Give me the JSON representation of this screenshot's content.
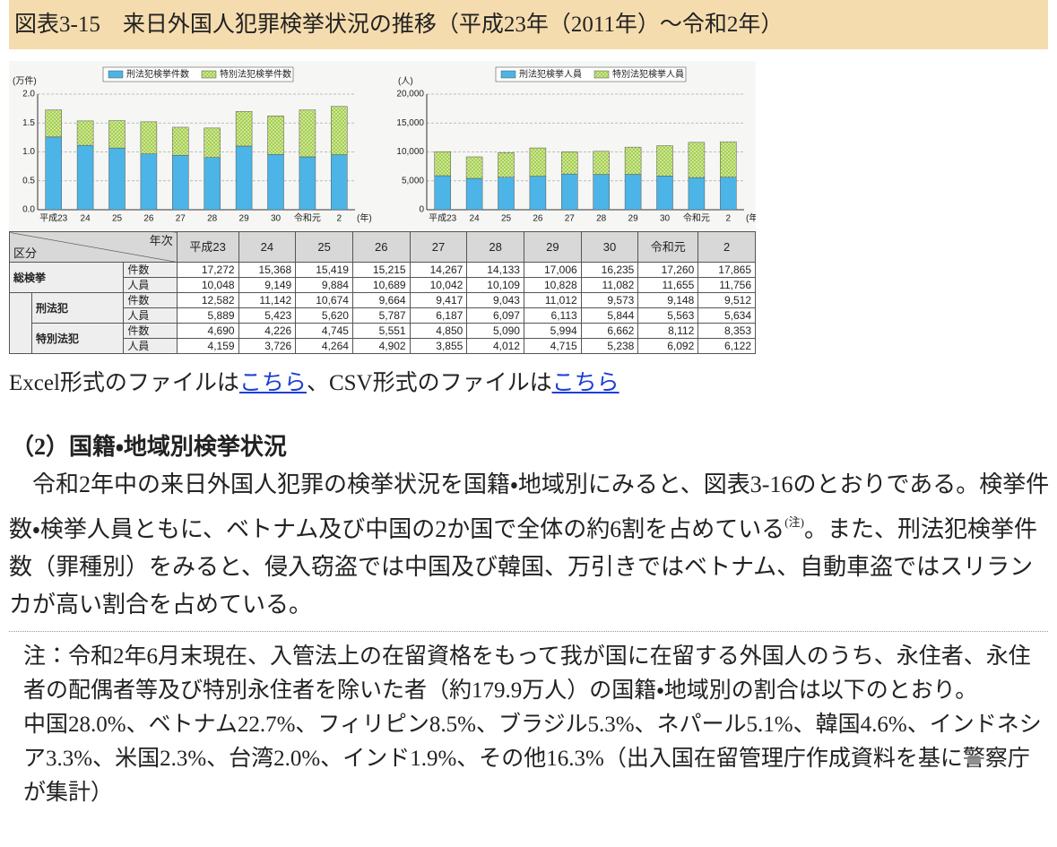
{
  "header": {
    "title": "図表3-15　来日外国人犯罪検挙状況の推移（平成23年（2011年）～令和2年）"
  },
  "chart_data": [
    {
      "type": "stacked-bar",
      "ylabel": "(万件)",
      "xlabel": "(年)",
      "categories": [
        "平成23",
        "24",
        "25",
        "26",
        "27",
        "28",
        "29",
        "30",
        "令和元",
        "2"
      ],
      "series": [
        {
          "name": "刑法犯検挙件数",
          "color": "#4cb4e6",
          "values": [
            1.2582,
            1.1142,
            1.0674,
            0.9664,
            0.9417,
            0.9043,
            1.1012,
            0.9573,
            0.9148,
            0.9512
          ]
        },
        {
          "name": "特別法犯検挙件数",
          "color": "#a5cf4c",
          "hatch": "dots",
          "values": [
            0.469,
            0.4226,
            0.4745,
            0.5551,
            0.485,
            0.509,
            0.5994,
            0.6662,
            0.8112,
            0.8353
          ]
        }
      ],
      "ylim": [
        0,
        2
      ],
      "yticks": [
        {
          "value": 0,
          "label": "0.0"
        },
        0.5,
        {
          "value": 1,
          "label": "1.0"
        },
        1.5,
        {
          "value": 2,
          "label": "2.0"
        }
      ],
      "grid": true
    },
    {
      "type": "stacked-bar",
      "ylabel": "(人)",
      "xlabel": "(年)",
      "categories": [
        "平成23",
        "24",
        "25",
        "26",
        "27",
        "28",
        "29",
        "30",
        "令和元",
        "2"
      ],
      "series": [
        {
          "name": "刑法犯検挙人員",
          "color": "#4cb4e6",
          "values": [
            5889,
            5423,
            5620,
            5787,
            6187,
            6097,
            6113,
            5844,
            5563,
            5634
          ]
        },
        {
          "name": "特別法犯検挙人員",
          "color": "#a5cf4c",
          "hatch": "dots",
          "values": [
            4159,
            3726,
            4264,
            4902,
            3855,
            4012,
            4715,
            5238,
            6092,
            6122
          ]
        }
      ],
      "ylim": [
        0,
        20000
      ],
      "yticks": [
        0,
        {
          "value": 5000,
          "label": "5,000"
        },
        {
          "value": 10000,
          "label": "10,000"
        },
        {
          "value": 15000,
          "label": "15,000"
        },
        {
          "value": 20000,
          "label": "20,000"
        }
      ],
      "grid": true
    }
  ],
  "table": {
    "corner_top": "年次",
    "corner_bottom": "区分",
    "columns": [
      "平成23",
      "24",
      "25",
      "26",
      "27",
      "28",
      "29",
      "30",
      "令和元",
      "2"
    ],
    "sections": [
      {
        "label": "総検挙",
        "rows": [
          {
            "label": "件数",
            "cells": [
              "17,272",
              "15,368",
              "15,419",
              "15,215",
              "14,267",
              "14,133",
              "17,006",
              "16,235",
              "17,260",
              "17,865"
            ]
          },
          {
            "label": "人員",
            "cells": [
              "10,048",
              "9,149",
              "9,884",
              "10,689",
              "10,042",
              "10,109",
              "10,828",
              "11,082",
              "11,655",
              "11,756"
            ]
          }
        ]
      },
      {
        "label": "刑法犯",
        "rows": [
          {
            "label": "件数",
            "cells": [
              "12,582",
              "11,142",
              "10,674",
              "9,664",
              "9,417",
              "9,043",
              "11,012",
              "9,573",
              "9,148",
              "9,512"
            ]
          },
          {
            "label": "人員",
            "cells": [
              "5,889",
              "5,423",
              "5,620",
              "5,787",
              "6,187",
              "6,097",
              "6,113",
              "5,844",
              "5,563",
              "5,634"
            ]
          }
        ]
      },
      {
        "label": "特別法犯",
        "rows": [
          {
            "label": "件数",
            "cells": [
              "4,690",
              "4,226",
              "4,745",
              "5,551",
              "4,850",
              "5,090",
              "5,994",
              "6,662",
              "8,112",
              "8,353"
            ]
          },
          {
            "label": "人員",
            "cells": [
              "4,159",
              "3,726",
              "4,264",
              "4,902",
              "3,855",
              "4,012",
              "4,715",
              "5,238",
              "6,092",
              "6,122"
            ]
          }
        ]
      }
    ]
  },
  "downloads": {
    "excel_text": "Excel形式のファイルは",
    "excel_link": "こちら",
    "csv_text": "、CSV形式のファイルは",
    "csv_link": "こちら"
  },
  "section": {
    "heading": "（2）国籍・地域別検挙状況",
    "before": "　令和2年中の来日外国人犯罪の検挙状況を国籍・地域別にみると、図表3-16のとおりである。検挙件数・検挙人員ともに、ベトナム及び中国の2か国で全体の約6割を占めている",
    "note_ref": "(注)",
    "after": "。また、刑法犯検挙件数（罪種別）をみると、侵入窃盗では中国及び韓国、万引きではベトナム、自動車盗ではスリランカが高い割合を占めている。"
  },
  "note": {
    "text1": "注：令和2年6月末現在、入管法上の在留資格をもって我が国に在留する外国人のうち、永住者、永住者の配偶者等及び特別永住者を除いた者（約179.9万人）の国籍・地域別の割合は以下のとおり。",
    "text2": "中国28.0%、ベトナム22.7%、フィリピン8.5%、ブラジル5.3%、ネパール5.1%、韓国4.6%、インドネシア3.3%、米国2.3%、台湾2.0%、インド1.9%、その他16.3%（出入国在留管理庁作成資料を基に警察庁が集計）"
  }
}
